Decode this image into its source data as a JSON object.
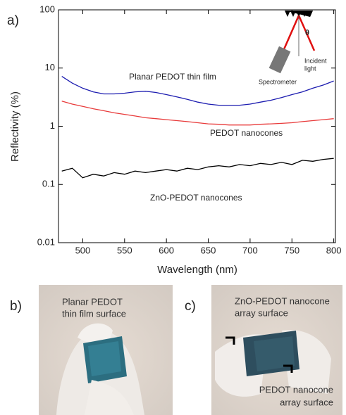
{
  "chart_data": {
    "type": "line",
    "panel_label": "a)",
    "x_label": "Wavelength (nm)",
    "y_label": "Reflectivity (%)",
    "x": [
      475,
      487.5,
      500,
      512.5,
      525,
      537.5,
      550,
      562.5,
      575,
      587.5,
      600,
      612.5,
      625,
      637.5,
      650,
      662.5,
      675,
      687.5,
      700,
      712.5,
      725,
      737.5,
      750,
      762.5,
      775,
      787.5,
      800
    ],
    "series": [
      {
        "name": "Planar PEDOT thin film",
        "color": "#1c1cb0",
        "values": [
          7.2,
          5.5,
          4.5,
          3.9,
          3.6,
          3.6,
          3.7,
          3.9,
          4.0,
          3.8,
          3.5,
          3.2,
          2.9,
          2.6,
          2.4,
          2.3,
          2.3,
          2.3,
          2.4,
          2.6,
          2.8,
          3.1,
          3.5,
          3.9,
          4.5,
          5.1,
          6.0
        ]
      },
      {
        "name": "PEDOT nanocones",
        "color": "#e83a3a",
        "values": [
          2.7,
          2.4,
          2.2,
          2.0,
          1.85,
          1.7,
          1.6,
          1.5,
          1.4,
          1.35,
          1.3,
          1.25,
          1.2,
          1.15,
          1.1,
          1.08,
          1.05,
          1.05,
          1.05,
          1.08,
          1.1,
          1.12,
          1.15,
          1.2,
          1.25,
          1.3,
          1.35
        ]
      },
      {
        "name": "ZnO-PEDOT nanocones",
        "color": "#000000",
        "values": [
          0.17,
          0.19,
          0.13,
          0.15,
          0.14,
          0.16,
          0.15,
          0.17,
          0.16,
          0.17,
          0.18,
          0.17,
          0.19,
          0.18,
          0.2,
          0.21,
          0.2,
          0.22,
          0.21,
          0.23,
          0.22,
          0.24,
          0.22,
          0.26,
          0.25,
          0.27,
          0.28
        ]
      }
    ],
    "xlim": [
      471,
      802
    ],
    "xticks": [
      500,
      550,
      600,
      650,
      700,
      750,
      800
    ],
    "ylim": [
      0.01,
      100
    ],
    "yticks": [
      0.01,
      0.1,
      1,
      10,
      100
    ],
    "y_log": true,
    "inset": {
      "angle": "θ",
      "incident": [
        "Incident",
        "light"
      ],
      "detector": "Spectrometer"
    }
  },
  "photos": [
    {
      "panel_label": "b)",
      "caption": [
        "Planar PEDOT",
        "thin film surface"
      ]
    },
    {
      "panel_label": "c)",
      "caption": [
        "ZnO-PEDOT nanocone",
        "array surface"
      ],
      "caption2": [
        "PEDOT nanocone",
        "array surface"
      ]
    }
  ]
}
